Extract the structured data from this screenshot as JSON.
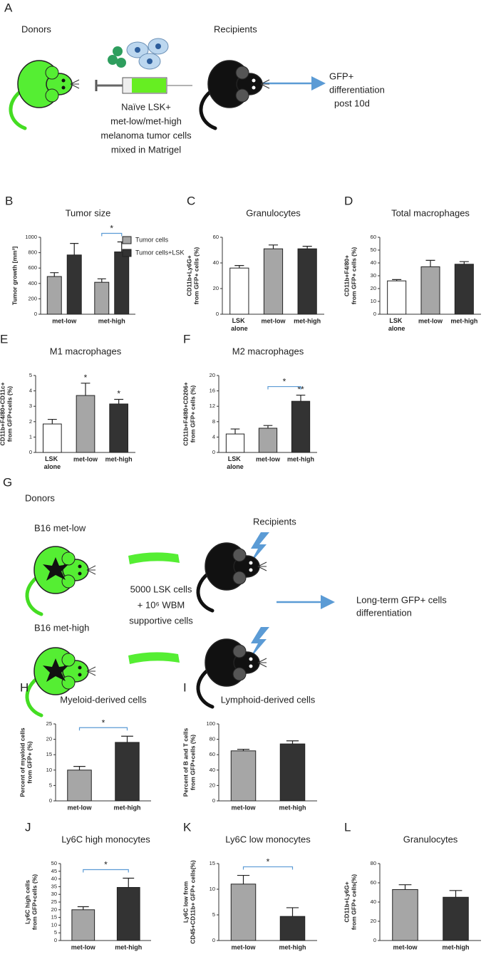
{
  "schematics": [
    {
      "panel": "A",
      "donors": "Donors",
      "recipients": "Recipients",
      "injection": [
        "Naïve LSK+",
        "met-low/met-high",
        "melanoma tumor cells",
        "mixed in Matrigel"
      ],
      "outcome": [
        "GFP+",
        "differentiation",
        "post 10d"
      ]
    },
    {
      "panel": "G",
      "donors": "Donors",
      "recipients": "Recipients",
      "donor_groups": [
        "B16 met-low",
        "B16 met-high"
      ],
      "transplant": [
        "5000 LSK cells",
        "+ 10⁶ WBM",
        "supportive cells"
      ],
      "outcome": [
        "Long-term GFP+ cells",
        "differentiation"
      ]
    }
  ],
  "chart_data": [
    {
      "panel": "B",
      "type": "bar",
      "title": "Tumor size",
      "ylabel": [
        "Tumor growth [mm³]"
      ],
      "categories": [
        "met-low",
        "met-high"
      ],
      "series": [
        {
          "name": "Tumor cells",
          "color": "#a6a6a6",
          "values": [
            490,
            415
          ],
          "errors": [
            50,
            45
          ]
        },
        {
          "name": "Tumor cells+LSK",
          "color": "#333333",
          "values": [
            770,
            810
          ],
          "errors": [
            150,
            130
          ]
        }
      ],
      "ylim": [
        0,
        1000
      ],
      "yticks": [
        0,
        200,
        400,
        600,
        800,
        1000
      ],
      "brackets": [
        {
          "label": "*",
          "category": 1
        }
      ]
    },
    {
      "panel": "C",
      "type": "bar",
      "title": "Granulocytes",
      "ylabel": [
        "CD11b+Ly6G+",
        "from GFP+ cells (%)"
      ],
      "categories": [
        "LSK alone",
        "met-low",
        "met-high"
      ],
      "values": [
        36,
        51,
        51
      ],
      "errors": [
        2,
        3,
        2
      ],
      "colors": [
        "#ffffff",
        "#a6a6a6",
        "#333333"
      ],
      "ylim": [
        0,
        60
      ],
      "yticks": [
        0,
        20,
        40,
        60
      ]
    },
    {
      "panel": "D",
      "type": "bar",
      "title": "Total macrophages",
      "ylabel": [
        "CD11b+F4/80+",
        "from GFP+ cells (%)"
      ],
      "categories": [
        "LSK alone",
        "met-low",
        "met-high"
      ],
      "values": [
        26,
        37,
        39
      ],
      "errors": [
        1,
        5,
        2
      ],
      "colors": [
        "#ffffff",
        "#a6a6a6",
        "#333333"
      ],
      "ylim": [
        0,
        60
      ],
      "yticks": [
        0,
        10,
        20,
        30,
        40,
        50,
        60
      ]
    },
    {
      "panel": "E",
      "type": "bar",
      "title": "M1 macrophages",
      "ylabel": [
        "CD11b+F4/80+CD11c+",
        "from GFP+cells (%)"
      ],
      "categories": [
        "LSK alone",
        "met-low",
        "met-high"
      ],
      "values": [
        1.85,
        3.7,
        3.15
      ],
      "errors": [
        0.3,
        0.8,
        0.3
      ],
      "colors": [
        "#ffffff",
        "#a6a6a6",
        "#333333"
      ],
      "ylim": [
        0,
        5
      ],
      "yticks": [
        0,
        1,
        2,
        3,
        4,
        5
      ],
      "stars": [
        null,
        "*",
        "*"
      ]
    },
    {
      "panel": "F",
      "type": "bar",
      "title": "M2 macrophages",
      "ylabel": [
        "CD11b+F4/80+CD206+",
        "from GFP+ cells (%)"
      ],
      "categories": [
        "LSK alone",
        "met-low",
        "met-high"
      ],
      "values": [
        4.8,
        6.3,
        13.3
      ],
      "errors": [
        1.3,
        0.7,
        1.6
      ],
      "colors": [
        "#ffffff",
        "#a6a6a6",
        "#333333"
      ],
      "ylim": [
        0,
        20
      ],
      "yticks": [
        0,
        4,
        8,
        12,
        16,
        20
      ],
      "stars": [
        null,
        null,
        "**"
      ],
      "brackets": [
        {
          "label": "*",
          "between": [
            1,
            2
          ]
        }
      ]
    },
    {
      "panel": "H",
      "type": "bar",
      "title": "Myeloid-derived cells",
      "ylabel": [
        "Percent of myeloid cells",
        "from GFP+ (%)"
      ],
      "categories": [
        "met-low",
        "met-high"
      ],
      "values": [
        10,
        19
      ],
      "errors": [
        1.2,
        2
      ],
      "colors": [
        "#a6a6a6",
        "#333333"
      ],
      "ylim": [
        0,
        25
      ],
      "yticks": [
        0,
        5,
        10,
        15,
        20,
        25
      ],
      "brackets": [
        {
          "label": "*",
          "between": [
            0,
            1
          ]
        }
      ]
    },
    {
      "panel": "I",
      "type": "bar",
      "title": "Lymphoid-derived  cells",
      "ylabel": [
        "Percent of B and T cells",
        "from GFP+cells (%)"
      ],
      "categories": [
        "met-low",
        "met-high"
      ],
      "values": [
        65,
        74
      ],
      "errors": [
        2,
        4
      ],
      "colors": [
        "#a6a6a6",
        "#333333"
      ],
      "ylim": [
        0,
        100
      ],
      "yticks": [
        0,
        20,
        40,
        60,
        80,
        100
      ]
    },
    {
      "panel": "J",
      "type": "bar",
      "title": "Ly6C high monocytes",
      "ylabel": [
        "Ly6C high cells",
        "from GFP+cells (%)"
      ],
      "categories": [
        "met-low",
        "met-high"
      ],
      "values": [
        20,
        34.5
      ],
      "errors": [
        2,
        6
      ],
      "colors": [
        "#a6a6a6",
        "#333333"
      ],
      "ylim": [
        0,
        50
      ],
      "yticks": [
        0,
        5,
        10,
        15,
        20,
        25,
        30,
        35,
        40,
        45,
        50
      ],
      "brackets": [
        {
          "label": "*",
          "between": [
            0,
            1
          ]
        }
      ]
    },
    {
      "panel": "K",
      "type": "bar",
      "title": "Ly6C low monocytes",
      "ylabel": [
        "Ly6C low from",
        "CD45+CD11b+ GFP+ cells(%)"
      ],
      "categories": [
        "met-low",
        "met-high"
      ],
      "values": [
        11,
        4.7
      ],
      "errors": [
        1.7,
        1.7
      ],
      "colors": [
        "#a6a6a6",
        "#333333"
      ],
      "ylim": [
        0,
        15
      ],
      "yticks": [
        0,
        5,
        10,
        15
      ],
      "brackets": [
        {
          "label": "*",
          "between": [
            0,
            1
          ]
        }
      ]
    },
    {
      "panel": "L",
      "type": "bar",
      "title": "Granulocytes",
      "ylabel": [
        "CD11b+Ly6G+",
        "from GFP+ cells(%)"
      ],
      "categories": [
        "met-low",
        "met-high"
      ],
      "values": [
        53,
        45
      ],
      "errors": [
        5,
        7
      ],
      "colors": [
        "#a6a6a6",
        "#333333"
      ],
      "ylim": [
        0,
        80
      ],
      "yticks": [
        0,
        20,
        40,
        60,
        80
      ]
    }
  ]
}
